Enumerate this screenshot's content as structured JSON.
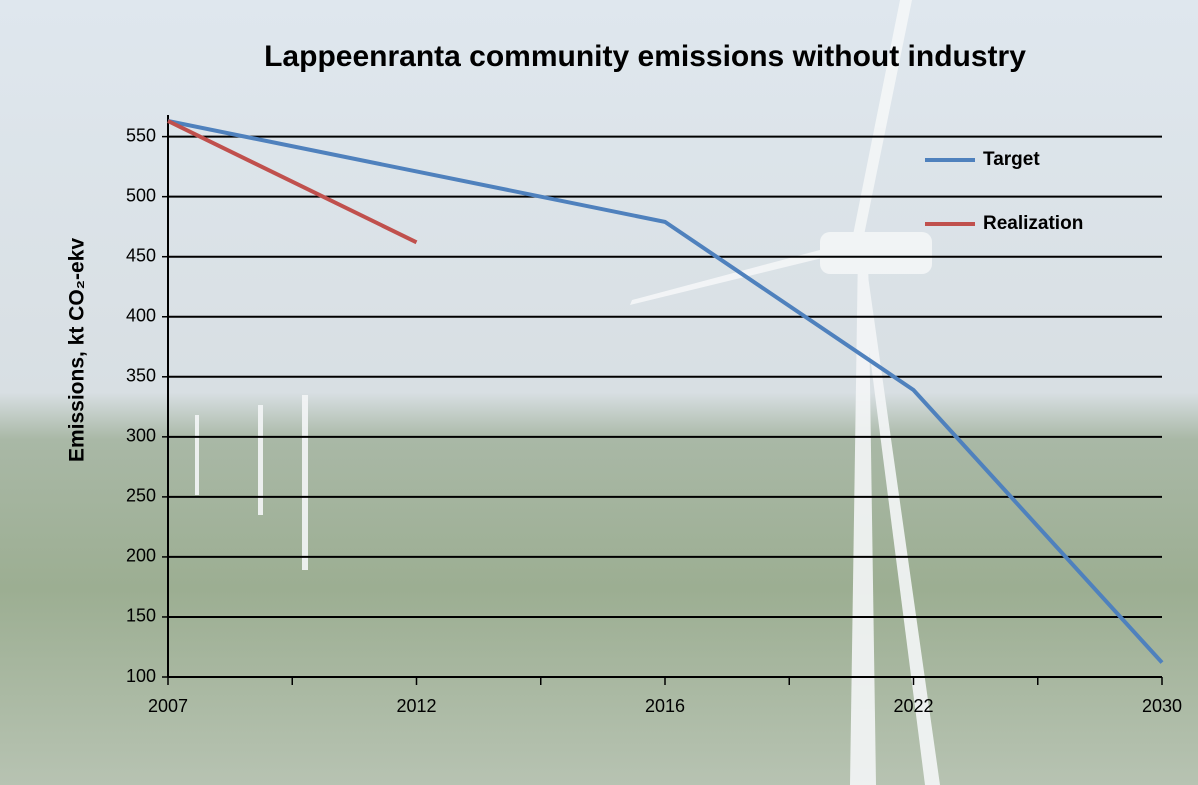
{
  "chart_data": {
    "type": "line",
    "title": "Lappeenranta community  emissions without industry",
    "y_label": "Emissions,  kt CO₂-ekv",
    "categories": [
      "2007",
      "2012",
      "2016",
      "2022",
      "2030"
    ],
    "series": [
      {
        "name": "Target",
        "color": "#4f81bd",
        "values": [
          563,
          521,
          479,
          339,
          112
        ]
      },
      {
        "name": "Realization",
        "color": "#c0504d",
        "values": [
          563,
          462,
          null,
          null,
          null
        ]
      }
    ],
    "ylim": [
      100,
      568
    ],
    "yticks": [
      100,
      150,
      200,
      250,
      300,
      350,
      400,
      450,
      500,
      550
    ],
    "grid": true,
    "legend": "top-right"
  }
}
